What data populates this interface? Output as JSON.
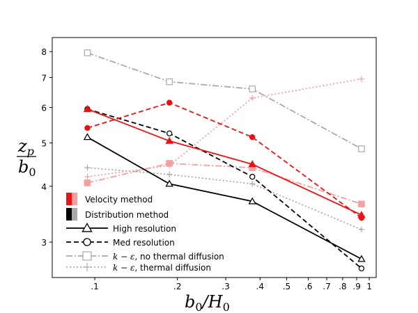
{
  "chart_data": {
    "type": "line",
    "xscale": "log",
    "yscale": "log",
    "xlim": [
      0.07,
      1.06
    ],
    "ylim": [
      2.5,
      8.6
    ],
    "ylabel_numerator": "z",
    "ylabel_numerator_sub": "p",
    "ylabel_denominator": "b",
    "ylabel_denominator_sub": "0",
    "xlabel_main": "b",
    "xlabel_sub": "0",
    "xlabel_rest": "/H",
    "xlabel_sub2": "0",
    "x_ticks": [
      {
        "value": 0.1,
        "label": ".1"
      },
      {
        "value": 0.2,
        "label": ".2"
      },
      {
        "value": 0.3,
        "label": ".3"
      },
      {
        "value": 0.4,
        "label": ".4"
      },
      {
        "value": 0.5,
        "label": ".5"
      },
      {
        "value": 0.6,
        "label": ".6"
      },
      {
        "value": 0.7,
        "label": ".7"
      },
      {
        "value": 0.8,
        "label": ".8"
      },
      {
        "value": 0.9,
        "label": ".9"
      },
      {
        "value": 1.0,
        "label": "1"
      }
    ],
    "y_ticks": [
      {
        "value": 3,
        "label": "3"
      },
      {
        "value": 4,
        "label": "4"
      },
      {
        "value": 5,
        "label": "5"
      },
      {
        "value": 6,
        "label": "6"
      },
      {
        "value": 7,
        "label": "7"
      },
      {
        "value": 8,
        "label": "8"
      }
    ],
    "series": [
      {
        "name": "k-eps no thermal diffusion (distribution)",
        "color": "#a9a9a9",
        "dash": "9,3,2,3",
        "marker": "square",
        "fill": "open",
        "x": [
          0.094,
          0.187,
          0.375,
          0.937
        ],
        "y": [
          7.95,
          6.85,
          6.6,
          4.85
        ]
      },
      {
        "name": "k-eps no thermal diffusion (velocity)",
        "color": "#f4a0a0",
        "dash": "9,3,2,3",
        "marker": "square",
        "fill": "solid",
        "x": [
          0.094,
          0.187,
          0.375,
          0.937
        ],
        "y": [
          4.07,
          4.5,
          4.4,
          3.65
        ]
      },
      {
        "name": "k-eps thermal diffusion (distribution)",
        "color": "#a9a9a9",
        "dash": "2,3",
        "marker": "plus",
        "fill": "open",
        "x": [
          0.094,
          0.187,
          0.375,
          0.937
        ],
        "y": [
          4.4,
          4.25,
          4.05,
          3.2
        ]
      },
      {
        "name": "k-eps thermal diffusion (velocity)",
        "color": "#f4a0a0",
        "dash": "2,3",
        "marker": "plus",
        "fill": "solid",
        "x": [
          0.094,
          0.187,
          0.375,
          0.937
        ],
        "y": [
          4.2,
          4.45,
          6.3,
          6.95
        ]
      },
      {
        "name": "Distribution high resolution",
        "color": "#000000",
        "dash": "",
        "marker": "triangle",
        "fill": "open",
        "x": [
          0.094,
          0.187,
          0.375,
          0.937
        ],
        "y": [
          5.15,
          4.05,
          3.7,
          2.75
        ]
      },
      {
        "name": "Distribution med resolution",
        "color": "#000000",
        "dash": "7,4",
        "marker": "circle",
        "fill": "open",
        "x": [
          0.094,
          0.187,
          0.375,
          0.937
        ],
        "y": [
          5.95,
          5.25,
          4.2,
          2.62
        ]
      },
      {
        "name": "Velocity high resolution",
        "color": "#ee1111",
        "dash": "",
        "marker": "triangle",
        "fill": "solid",
        "x": [
          0.094,
          0.187,
          0.375,
          0.937
        ],
        "y": [
          5.95,
          5.05,
          4.48,
          3.45
        ]
      },
      {
        "name": "Velocity med resolution",
        "color": "#ee1111",
        "dash": "7,4",
        "marker": "circle",
        "fill": "solid",
        "x": [
          0.094,
          0.187,
          0.375,
          0.937
        ],
        "y": [
          5.4,
          6.15,
          5.15,
          3.4
        ]
      }
    ],
    "legend": {
      "placement": "lower-left",
      "entries": [
        {
          "kind": "swatch",
          "swatch": [
            "#ee1111",
            "#f4a0a0"
          ],
          "label": "Velocity method"
        },
        {
          "kind": "swatch",
          "swatch": [
            "#000000",
            "#a9a9a9"
          ],
          "label": "Distribution method"
        },
        {
          "kind": "line",
          "color": "#000000",
          "dash": "",
          "marker": "triangle",
          "label": "High resolution"
        },
        {
          "kind": "line",
          "color": "#000000",
          "dash": "7,4",
          "marker": "circle",
          "label": "Med resolution"
        },
        {
          "kind": "line",
          "color": "#a9a9a9",
          "dash": "9,3,2,3",
          "marker": "square",
          "label_math": "k − ε",
          "label": ", no thermal diffusion"
        },
        {
          "kind": "line",
          "color": "#a9a9a9",
          "dash": "2,3",
          "marker": "plus",
          "label_math": "k − ε",
          "label": ", thermal diffusion"
        }
      ]
    }
  }
}
